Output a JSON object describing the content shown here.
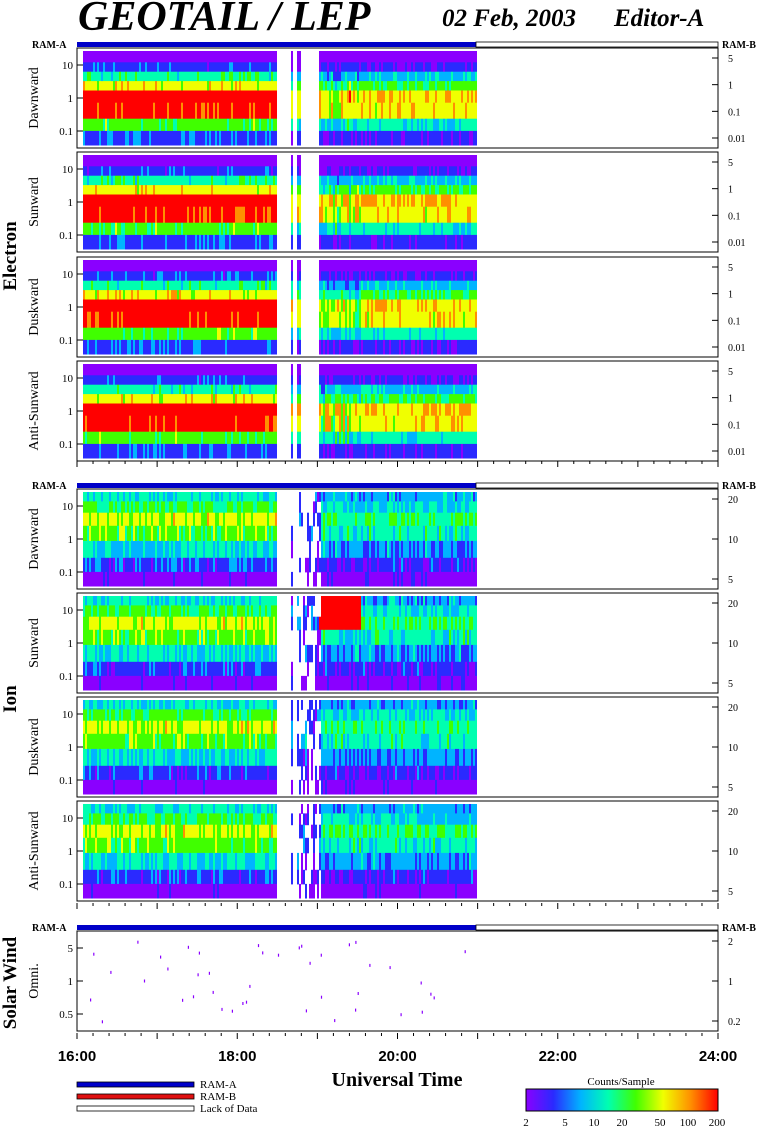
{
  "header": {
    "title": "GEOTAIL / LEP",
    "date": "02 Feb, 2003",
    "editor": "Editor-A"
  },
  "ram_labels": {
    "a": "RAM-A",
    "b": "RAM-B"
  },
  "groups": [
    {
      "label": "Electron",
      "panels": [
        {
          "label": "Dawnward",
          "ticks_left": [
            "10",
            "1",
            "0.1"
          ],
          "ticks_right": [
            "5",
            "1",
            "0.1",
            "0.01"
          ]
        },
        {
          "label": "Sunward",
          "ticks_left": [
            "10",
            "1",
            "0.1"
          ],
          "ticks_right": [
            "5",
            "1",
            "0.1",
            "0.01"
          ]
        },
        {
          "label": "Duskward",
          "ticks_left": [
            "10",
            "1",
            "0.1"
          ],
          "ticks_right": [
            "5",
            "1",
            "0.1",
            "0.01"
          ]
        },
        {
          "label": "Anti-Sunward",
          "ticks_left": [
            "10",
            "1",
            "0.1"
          ],
          "ticks_right": [
            "5",
            "1",
            "0.1",
            "0.01"
          ]
        }
      ]
    },
    {
      "label": "Ion",
      "panels": [
        {
          "label": "Dawnward",
          "ticks_left": [
            "10",
            "1",
            "0.1"
          ],
          "ticks_right": [
            "20",
            "10",
            "5"
          ]
        },
        {
          "label": "Sunward",
          "ticks_left": [
            "10",
            "1",
            "0.1"
          ],
          "ticks_right": [
            "20",
            "10",
            "5"
          ]
        },
        {
          "label": "Duskward",
          "ticks_left": [
            "10",
            "1",
            "0.1"
          ],
          "ticks_right": [
            "20",
            "10",
            "5"
          ]
        },
        {
          "label": "Anti-Sunward",
          "ticks_left": [
            "10",
            "1",
            "0.1"
          ],
          "ticks_right": [
            "20",
            "10",
            "5"
          ]
        }
      ]
    },
    {
      "label": "Solar Wind",
      "panels": [
        {
          "label": "Omni.",
          "ticks_left": [
            "5",
            "1",
            "0.5"
          ],
          "ticks_right": [
            "2",
            "1",
            "0.2"
          ]
        }
      ]
    }
  ],
  "x_axis": {
    "title": "Universal Time",
    "tick_labels": [
      "16:00",
      "18:00",
      "20:00",
      "22:00",
      "24:00"
    ]
  },
  "legend": {
    "items": [
      {
        "label": "RAM-A",
        "color": "#0000c8"
      },
      {
        "label": "RAM-B",
        "color": "#e01010"
      },
      {
        "label": "Lack of Data",
        "color": "#ffffff"
      }
    ]
  },
  "colorbar": {
    "title": "Counts/Sample",
    "tick_labels": [
      "2",
      "5",
      "10",
      "20",
      "50",
      "100",
      "200"
    ],
    "colors": [
      "#8a00ff",
      "#2a2aff",
      "#00b4ff",
      "#00ffb0",
      "#40ff00",
      "#f0ff00",
      "#ff9000",
      "#ff0000"
    ]
  },
  "chart_data": {
    "type": "heatmap",
    "title": "GEOTAIL / LEP",
    "xlabel": "Universal Time",
    "xlim": [
      "16:00",
      "24:00"
    ],
    "data_coverage": [
      "16:00",
      "21:00"
    ],
    "colorbar_label": "Counts/Sample",
    "colorbar_range": [
      2,
      200
    ],
    "panels": [
      "Electron Dawnward",
      "Electron Sunward",
      "Electron Duskward",
      "Electron Anti-Sunward",
      "Ion Dawnward",
      "Ion Sunward",
      "Ion Duskward",
      "Ion Anti-Sunward",
      "Solar Wind Omni."
    ]
  }
}
